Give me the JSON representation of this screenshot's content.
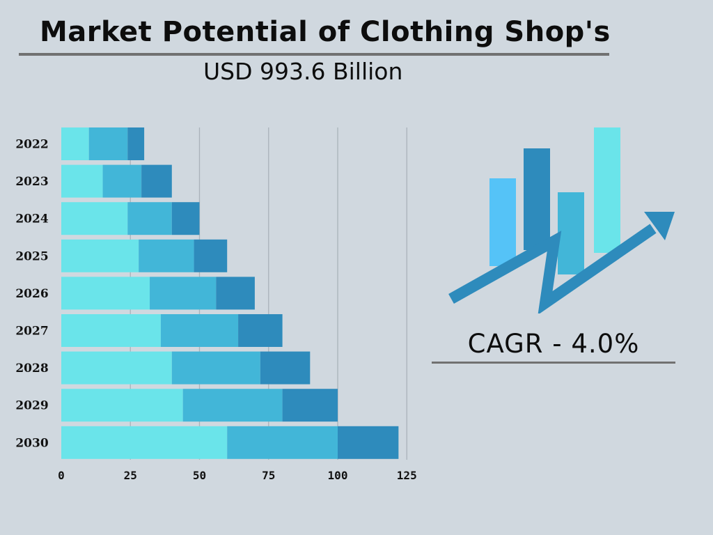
{
  "header": {
    "title": "Market Potential of Clothing Shop's",
    "subtitle": "USD 993.6 Billion"
  },
  "cagr": {
    "label": "CAGR - 4.0%"
  },
  "colors": {
    "background": "#d0d8df",
    "segment_1": "#6ae4ea",
    "segment_2": "#42b6d8",
    "segment_3": "#2e8bbc",
    "rule": "#717171",
    "icon_light_blue": "#55c3f7",
    "icon_dark_blue": "#2e8bbc",
    "icon_mid_blue": "#42b6d8",
    "icon_cyan": "#6ae4ea"
  },
  "icons": {
    "growth": "bar-chart-up-arrow-icon"
  },
  "chart_data": {
    "type": "bar",
    "orientation": "horizontal",
    "stacked": true,
    "categories": [
      "2022",
      "2023",
      "2024",
      "2025",
      "2026",
      "2027",
      "2028",
      "2029",
      "2030"
    ],
    "series": [
      {
        "values": [
          10,
          15,
          24,
          28,
          32,
          36,
          40,
          44,
          60
        ]
      },
      {
        "values": [
          14,
          14,
          16,
          20,
          24,
          28,
          32,
          36,
          40
        ]
      },
      {
        "values": [
          6,
          11,
          10,
          12,
          14,
          16,
          18,
          20,
          22
        ]
      }
    ],
    "xticks": [
      "0",
      "25",
      "50",
      "75",
      "100",
      "125"
    ],
    "xlim": [
      0,
      125
    ],
    "grid": true,
    "legend": "none"
  }
}
